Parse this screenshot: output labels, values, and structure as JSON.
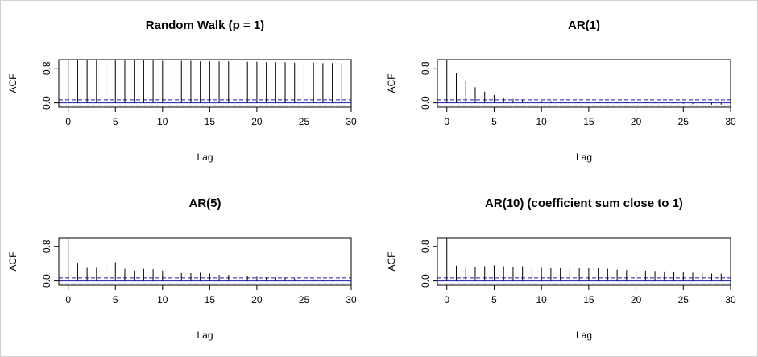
{
  "colors": {
    "bar": "#000000",
    "conf_band": "#1a1ab0",
    "frame": "#000000",
    "background": "#ffffff"
  },
  "chart_data": [
    {
      "type": "bar",
      "title": "Random Walk (p = 1)",
      "xlabel": "Lag",
      "ylabel": "ACF",
      "xlim": [
        -1,
        30
      ],
      "ylim": [
        -0.1,
        1.0
      ],
      "xticks": [
        0,
        5,
        10,
        15,
        20,
        25,
        30
      ],
      "yticks": [
        0.0,
        0.8
      ],
      "confidence_band": [
        0.07,
        -0.07
      ],
      "lags": [
        0,
        1,
        2,
        3,
        4,
        5,
        6,
        7,
        8,
        9,
        10,
        11,
        12,
        13,
        14,
        15,
        16,
        17,
        18,
        19,
        20,
        21,
        22,
        23,
        24,
        25,
        26,
        27,
        28,
        29
      ],
      "values": [
        1.0,
        1.0,
        0.99,
        0.99,
        0.99,
        0.99,
        0.98,
        0.98,
        0.98,
        0.98,
        0.97,
        0.97,
        0.97,
        0.97,
        0.96,
        0.96,
        0.96,
        0.96,
        0.95,
        0.95,
        0.95,
        0.94,
        0.94,
        0.94,
        0.93,
        0.93,
        0.93,
        0.92,
        0.92,
        0.92
      ],
      "grid": false
    },
    {
      "type": "bar",
      "title": "AR(1)",
      "xlabel": "Lag",
      "ylabel": "ACF",
      "xlim": [
        -1,
        30
      ],
      "ylim": [
        -0.1,
        1.0
      ],
      "xticks": [
        0,
        5,
        10,
        15,
        20,
        25,
        30
      ],
      "yticks": [
        0.0,
        0.8
      ],
      "confidence_band": [
        0.07,
        -0.07
      ],
      "lags": [
        0,
        1,
        2,
        3,
        4,
        5,
        6,
        7,
        8,
        9,
        10,
        11,
        12,
        13,
        14,
        15,
        16,
        17,
        18,
        19,
        20,
        21,
        22,
        23,
        24,
        25,
        26,
        27,
        28,
        29
      ],
      "values": [
        1.0,
        0.7,
        0.5,
        0.36,
        0.26,
        0.18,
        0.12,
        0.09,
        0.07,
        0.06,
        0.05,
        0.04,
        0.03,
        0.03,
        0.03,
        0.03,
        0.03,
        0.03,
        0.03,
        0.03,
        0.02,
        0.02,
        0.02,
        0.0,
        -0.01,
        -0.02,
        -0.03,
        -0.03,
        -0.04,
        -0.04
      ],
      "grid": false
    },
    {
      "type": "bar",
      "title": "AR(5)",
      "xlabel": "Lag",
      "ylabel": "ACF",
      "xlim": [
        -1,
        30
      ],
      "ylim": [
        -0.1,
        1.0
      ],
      "xticks": [
        0,
        5,
        10,
        15,
        20,
        25,
        30
      ],
      "yticks": [
        0.0,
        0.8
      ],
      "confidence_band": [
        0.07,
        -0.07
      ],
      "lags": [
        0,
        1,
        2,
        3,
        4,
        5,
        6,
        7,
        8,
        9,
        10,
        11,
        12,
        13,
        14,
        15,
        16,
        17,
        18,
        19,
        20,
        21,
        22,
        23,
        24,
        25,
        26,
        27,
        28,
        29
      ],
      "values": [
        1.0,
        0.42,
        0.32,
        0.32,
        0.38,
        0.43,
        0.28,
        0.24,
        0.28,
        0.27,
        0.24,
        0.19,
        0.18,
        0.18,
        0.19,
        0.17,
        0.14,
        0.14,
        0.13,
        0.12,
        0.1,
        0.08,
        0.08,
        0.07,
        0.06,
        0.05,
        0.04,
        0.02,
        0.02,
        0.01
      ],
      "grid": false
    },
    {
      "type": "bar",
      "title": "AR(10) (coefficient sum close to 1)",
      "xlabel": "Lag",
      "ylabel": "ACF",
      "xlim": [
        -1,
        30
      ],
      "ylim": [
        -0.1,
        1.0
      ],
      "xticks": [
        0,
        5,
        10,
        15,
        20,
        25,
        30
      ],
      "yticks": [
        0.0,
        0.8
      ],
      "confidence_band": [
        0.07,
        -0.07
      ],
      "lags": [
        0,
        1,
        2,
        3,
        4,
        5,
        6,
        7,
        8,
        9,
        10,
        11,
        12,
        13,
        14,
        15,
        16,
        17,
        18,
        19,
        20,
        21,
        22,
        23,
        24,
        25,
        26,
        27,
        28,
        29
      ],
      "values": [
        1.0,
        0.35,
        0.32,
        0.33,
        0.34,
        0.36,
        0.34,
        0.33,
        0.34,
        0.33,
        0.32,
        0.3,
        0.3,
        0.3,
        0.3,
        0.3,
        0.29,
        0.28,
        0.26,
        0.25,
        0.24,
        0.24,
        0.23,
        0.22,
        0.21,
        0.2,
        0.19,
        0.18,
        0.17,
        0.17
      ],
      "grid": false
    }
  ]
}
